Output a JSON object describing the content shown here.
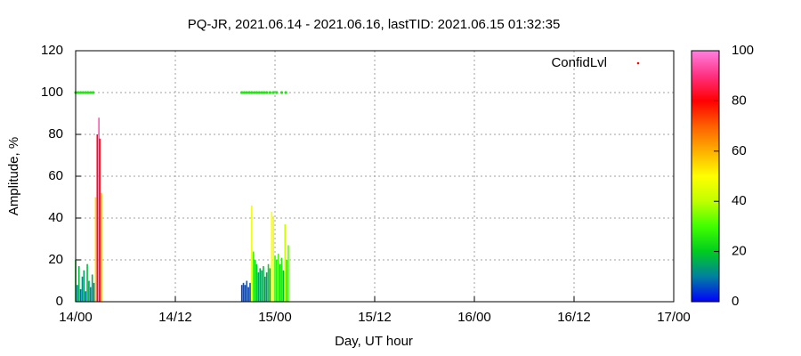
{
  "chart_data": {
    "type": "impulse",
    "title": "PQ-JR, 2021.06.14 - 2021.06.16, lastTID: 2021.06.15 01:32:35",
    "x_label": "Day, UT hour",
    "y_label": "Amplitude, %",
    "xlim": [
      0,
      72
    ],
    "xticks": [
      {
        "value": 0,
        "label": "14/00"
      },
      {
        "value": 12,
        "label": "14/12"
      },
      {
        "value": 24,
        "label": "15/00"
      },
      {
        "value": 36,
        "label": "15/12"
      },
      {
        "value": 48,
        "label": "16/00"
      },
      {
        "value": 60,
        "label": "16/12"
      },
      {
        "value": 72,
        "label": "17/00"
      }
    ],
    "ylim": [
      0,
      120
    ],
    "yticks": [
      0,
      20,
      40,
      60,
      80,
      100,
      120
    ],
    "grid": true,
    "legend": "top-right",
    "colormap": [
      [
        0,
        "#0000ff"
      ],
      [
        10,
        "#0080a0"
      ],
      [
        20,
        "#00cc20"
      ],
      [
        30,
        "#40ff00"
      ],
      [
        40,
        "#c0ff00"
      ],
      [
        50,
        "#ffff00"
      ],
      [
        60,
        "#ffb000"
      ],
      [
        70,
        "#ff6000"
      ],
      [
        80,
        "#ff0000"
      ],
      [
        90,
        "#ff3080"
      ],
      [
        100,
        "#ff80e0"
      ]
    ],
    "clim": [
      0,
      100
    ],
    "cticks": [
      0,
      20,
      40,
      60,
      80,
      100
    ],
    "impulses": {
      "x": [
        0,
        0.2,
        0.4,
        0.6,
        0.8,
        1.0,
        1.2,
        1.4,
        1.6,
        1.8,
        2.0,
        2.2,
        2.4,
        2.6,
        2.8,
        2.9,
        3.1,
        20.0,
        20.2,
        20.4,
        20.6,
        20.8,
        21.0,
        21.2,
        21.4,
        21.6,
        21.8,
        22.0,
        22.2,
        22.4,
        22.6,
        22.8,
        23.0,
        23.2,
        23.4,
        23.6,
        23.8,
        24.0,
        24.2,
        24.4,
        24.6,
        24.8,
        25.0,
        25.2,
        25.4,
        25.6
      ],
      "values": [
        20,
        8,
        17,
        6,
        12,
        15,
        5,
        18,
        10,
        7,
        13,
        9,
        50,
        80,
        88,
        78,
        52,
        8,
        9,
        8,
        10,
        7,
        9,
        46,
        24,
        20,
        18,
        14,
        16,
        15,
        17,
        12,
        14,
        18,
        16,
        43,
        41,
        22,
        20,
        23,
        18,
        21,
        15,
        37,
        20,
        27
      ],
      "levels": [
        20,
        10,
        18,
        8,
        12,
        15,
        8,
        18,
        12,
        10,
        15,
        10,
        55,
        82,
        95,
        80,
        58,
        5,
        6,
        5,
        7,
        5,
        6,
        48,
        28,
        22,
        20,
        14,
        16,
        15,
        18,
        12,
        14,
        22,
        16,
        50,
        48,
        28,
        25,
        30,
        22,
        26,
        18,
        42,
        25,
        32
      ]
    },
    "series": [
      {
        "name": "ConfidLvl",
        "color": "#ff0000",
        "x": [
          0,
          0.3,
          0.6,
          0.9,
          1.2,
          1.5,
          1.8,
          2.1,
          20.0,
          20.3,
          20.6,
          20.9,
          21.2,
          21.5,
          21.8,
          22.1,
          22.4,
          22.7,
          23.0,
          23.4,
          23.8,
          24.2,
          24.8,
          25.3
        ],
        "values": [
          100,
          100,
          100,
          100,
          100,
          100,
          100,
          100,
          100,
          100,
          100,
          100,
          100,
          100,
          100,
          100,
          100,
          100,
          100,
          100,
          100,
          100,
          100,
          100
        ],
        "levels": [
          25,
          25,
          25,
          25,
          25,
          25,
          25,
          25,
          25,
          25,
          25,
          25,
          25,
          25,
          25,
          25,
          25,
          25,
          25,
          25,
          25,
          25,
          25,
          25
        ]
      }
    ]
  }
}
